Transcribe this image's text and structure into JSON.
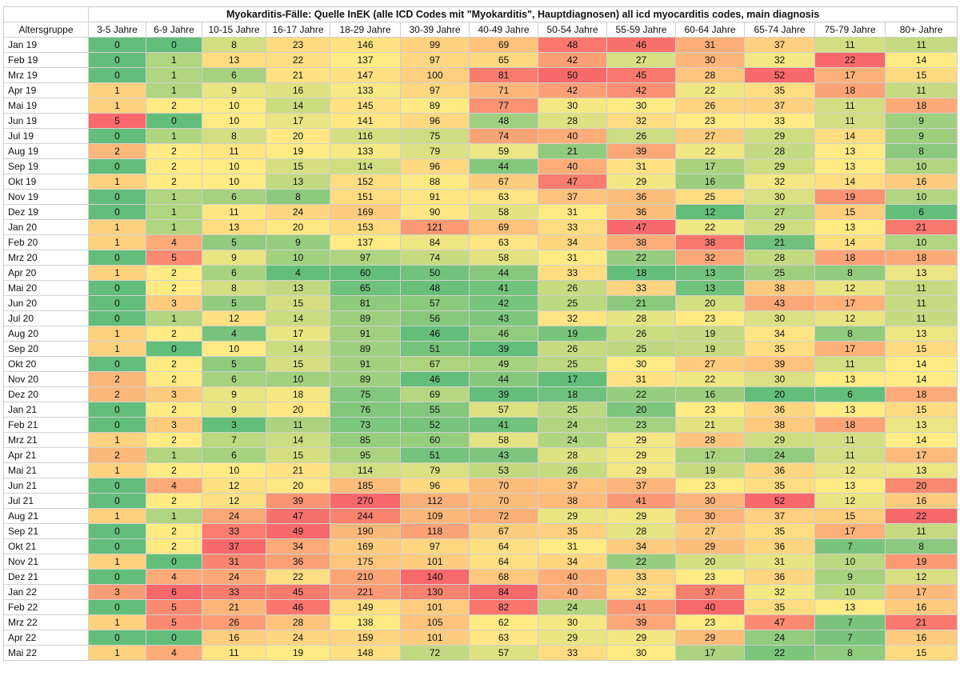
{
  "chart_data": {
    "type": "heatmap",
    "title": "Myokarditis-Fälle: Quelle InEK (alle ICD Codes mit \"Myokarditis\", Hauptdiagnosen) all icd myocarditis codes, main diagnosis",
    "row_header": "Altersgruppe",
    "columns": [
      "3-5 Jahre",
      "6-9 Jahre",
      "10-15 Jahre",
      "16-17 Jahre",
      "18-29 Jahre",
      "30-39 Jahre",
      "40-49 Jahre",
      "50-54 Jahre",
      "55-59 Jahre",
      "60-64 Jahre",
      "65-74 Jahre",
      "75-79 Jahre",
      "80+ Jahre"
    ],
    "rows": [
      "Jan 19",
      "Feb 19",
      "Mrz 19",
      "Apr 19",
      "Mai 19",
      "Jun 19",
      "Jul 19",
      "Aug 19",
      "Sep 19",
      "Okt 19",
      "Nov 19",
      "Dez 19",
      "Jan 20",
      "Feb 20",
      "Mrz 20",
      "Apr 20",
      "Mai 20",
      "Jun 20",
      "Jul 20",
      "Aug 20",
      "Sep 20",
      "Okt 20",
      "Nov 20",
      "Dez 20",
      "Jan 21",
      "Feb 21",
      "Mrz 21",
      "Apr 21",
      "Mai 21",
      "Jun 21",
      "Jul 21",
      "Aug 21",
      "Sep 21",
      "Okt 21",
      "Nov 21",
      "Dez 21",
      "Jan 22",
      "Feb 22",
      "Mrz 22",
      "Apr 22",
      "Mai 22"
    ],
    "values": [
      [
        0,
        0,
        8,
        23,
        146,
        99,
        69,
        48,
        46,
        31,
        37,
        11,
        11
      ],
      [
        0,
        1,
        13,
        22,
        137,
        97,
        65,
        42,
        27,
        30,
        32,
        22,
        14
      ],
      [
        0,
        1,
        6,
        21,
        147,
        100,
        81,
        50,
        45,
        28,
        52,
        17,
        15
      ],
      [
        1,
        1,
        9,
        16,
        133,
        97,
        71,
        42,
        42,
        22,
        35,
        18,
        11
      ],
      [
        1,
        2,
        10,
        14,
        145,
        89,
        77,
        30,
        30,
        26,
        37,
        11,
        18
      ],
      [
        5,
        0,
        10,
        17,
        141,
        96,
        48,
        28,
        32,
        23,
        33,
        11,
        9
      ],
      [
        0,
        1,
        8,
        20,
        116,
        75,
        74,
        40,
        26,
        27,
        29,
        14,
        9
      ],
      [
        2,
        2,
        11,
        19,
        133,
        79,
        59,
        21,
        39,
        22,
        28,
        13,
        8
      ],
      [
        0,
        2,
        10,
        15,
        114,
        96,
        44,
        40,
        31,
        17,
        29,
        13,
        10
      ],
      [
        1,
        2,
        10,
        13,
        152,
        88,
        67,
        47,
        29,
        16,
        32,
        14,
        16
      ],
      [
        0,
        1,
        6,
        8,
        151,
        91,
        63,
        37,
        36,
        25,
        30,
        19,
        10
      ],
      [
        0,
        1,
        11,
        24,
        169,
        90,
        58,
        31,
        36,
        12,
        27,
        15,
        6
      ],
      [
        1,
        1,
        13,
        20,
        153,
        121,
        69,
        33,
        47,
        22,
        29,
        13,
        21
      ],
      [
        1,
        4,
        5,
        9,
        137,
        84,
        63,
        34,
        38,
        38,
        21,
        14,
        10
      ],
      [
        0,
        5,
        9,
        10,
        97,
        74,
        58,
        31,
        22,
        32,
        28,
        18,
        18
      ],
      [
        1,
        2,
        6,
        4,
        60,
        50,
        44,
        33,
        18,
        13,
        25,
        8,
        13
      ],
      [
        0,
        2,
        8,
        13,
        65,
        48,
        41,
        26,
        33,
        13,
        38,
        12,
        11
      ],
      [
        0,
        3,
        5,
        15,
        81,
        57,
        42,
        25,
        21,
        20,
        43,
        17,
        11
      ],
      [
        0,
        1,
        12,
        14,
        89,
        56,
        43,
        32,
        28,
        23,
        30,
        12,
        11
      ],
      [
        1,
        2,
        4,
        17,
        91,
        46,
        46,
        19,
        26,
        19,
        34,
        8,
        13
      ],
      [
        1,
        0,
        10,
        14,
        89,
        51,
        39,
        26,
        25,
        19,
        35,
        17,
        15
      ],
      [
        0,
        2,
        5,
        15,
        91,
        67,
        49,
        25,
        30,
        27,
        39,
        11,
        14
      ],
      [
        2,
        2,
        6,
        10,
        89,
        46,
        44,
        17,
        31,
        22,
        30,
        13,
        14
      ],
      [
        2,
        3,
        9,
        18,
        75,
        69,
        39,
        18,
        22,
        16,
        20,
        6,
        18
      ],
      [
        0,
        2,
        9,
        20,
        76,
        55,
        57,
        25,
        20,
        23,
        36,
        13,
        15
      ],
      [
        0,
        3,
        3,
        11,
        73,
        52,
        41,
        24,
        23,
        21,
        38,
        18,
        13
      ],
      [
        1,
        2,
        7,
        14,
        85,
        60,
        58,
        24,
        29,
        28,
        29,
        11,
        14
      ],
      [
        2,
        1,
        6,
        15,
        95,
        51,
        43,
        28,
        29,
        17,
        24,
        11,
        17
      ],
      [
        1,
        2,
        10,
        21,
        114,
        79,
        53,
        26,
        29,
        19,
        36,
        12,
        13
      ],
      [
        0,
        4,
        12,
        20,
        185,
        96,
        70,
        37,
        37,
        23,
        35,
        13,
        20
      ],
      [
        0,
        2,
        12,
        39,
        270,
        112,
        70,
        38,
        41,
        30,
        52,
        12,
        16
      ],
      [
        1,
        1,
        24,
        47,
        244,
        109,
        72,
        29,
        29,
        30,
        37,
        15,
        22
      ],
      [
        0,
        2,
        33,
        49,
        190,
        118,
        67,
        35,
        28,
        27,
        35,
        17,
        11
      ],
      [
        0,
        2,
        37,
        34,
        169,
        97,
        64,
        31,
        34,
        29,
        36,
        7,
        8
      ],
      [
        1,
        0,
        31,
        36,
        175,
        101,
        64,
        34,
        22,
        20,
        31,
        10,
        19
      ],
      [
        0,
        4,
        24,
        22,
        210,
        140,
        68,
        40,
        33,
        23,
        36,
        9,
        12
      ],
      [
        3,
        6,
        33,
        45,
        221,
        130,
        84,
        40,
        32,
        37,
        32,
        10,
        17
      ],
      [
        0,
        5,
        21,
        46,
        149,
        101,
        82,
        24,
        41,
        40,
        35,
        13,
        16
      ],
      [
        1,
        5,
        26,
        28,
        138,
        105,
        62,
        30,
        39,
        23,
        47,
        7,
        21
      ],
      [
        0,
        0,
        16,
        24,
        159,
        101,
        63,
        29,
        29,
        29,
        24,
        7,
        16
      ],
      [
        1,
        4,
        11,
        19,
        148,
        72,
        57,
        33,
        30,
        17,
        22,
        8,
        15
      ]
    ],
    "color_scale": {
      "low": "#63be7b",
      "mid": "#ffeb84",
      "high": "#f8696b"
    },
    "grid": true,
    "legend": "none"
  }
}
